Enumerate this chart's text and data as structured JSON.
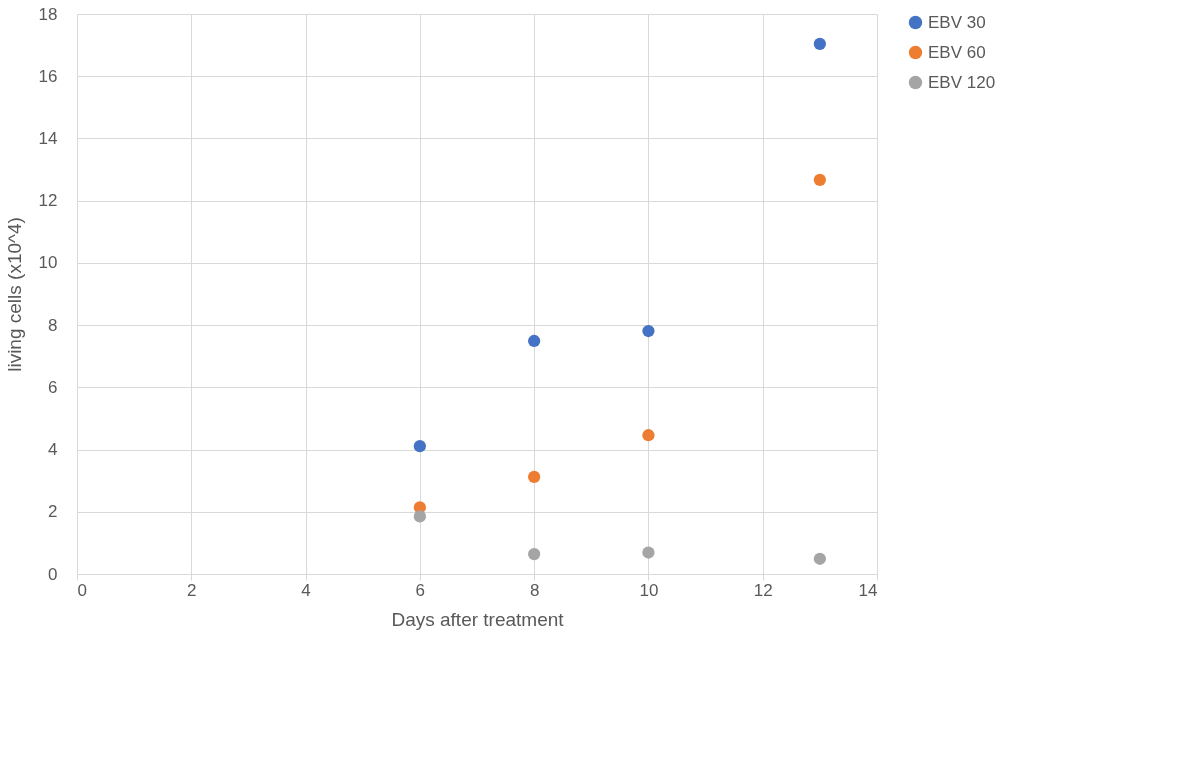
{
  "chart_data": {
    "type": "scatter",
    "xlabel": "Days after treatment",
    "ylabel": "living cells (x10^4)",
    "x": [
      6,
      8,
      10,
      13
    ],
    "series": [
      {
        "name": "EBV 30",
        "color": "#4472c4",
        "values": [
          4.11,
          7.49,
          7.81,
          17.04
        ]
      },
      {
        "name": "EBV 60",
        "color": "#ed7d31",
        "values": [
          2.14,
          3.12,
          4.46,
          12.67
        ]
      },
      {
        "name": "EBV 120",
        "color": "#a5a5a5",
        "values": [
          1.85,
          0.64,
          0.69,
          0.49
        ]
      }
    ],
    "xlim": [
      0,
      14
    ],
    "xticks": [
      0,
      2,
      4,
      6,
      8,
      10,
      12,
      14
    ],
    "ylim": [
      0,
      18
    ],
    "yticks": [
      0,
      2,
      4,
      6,
      8,
      10,
      12,
      14,
      16,
      18
    ],
    "grid": true,
    "legend": "right",
    "marker": "circle"
  }
}
